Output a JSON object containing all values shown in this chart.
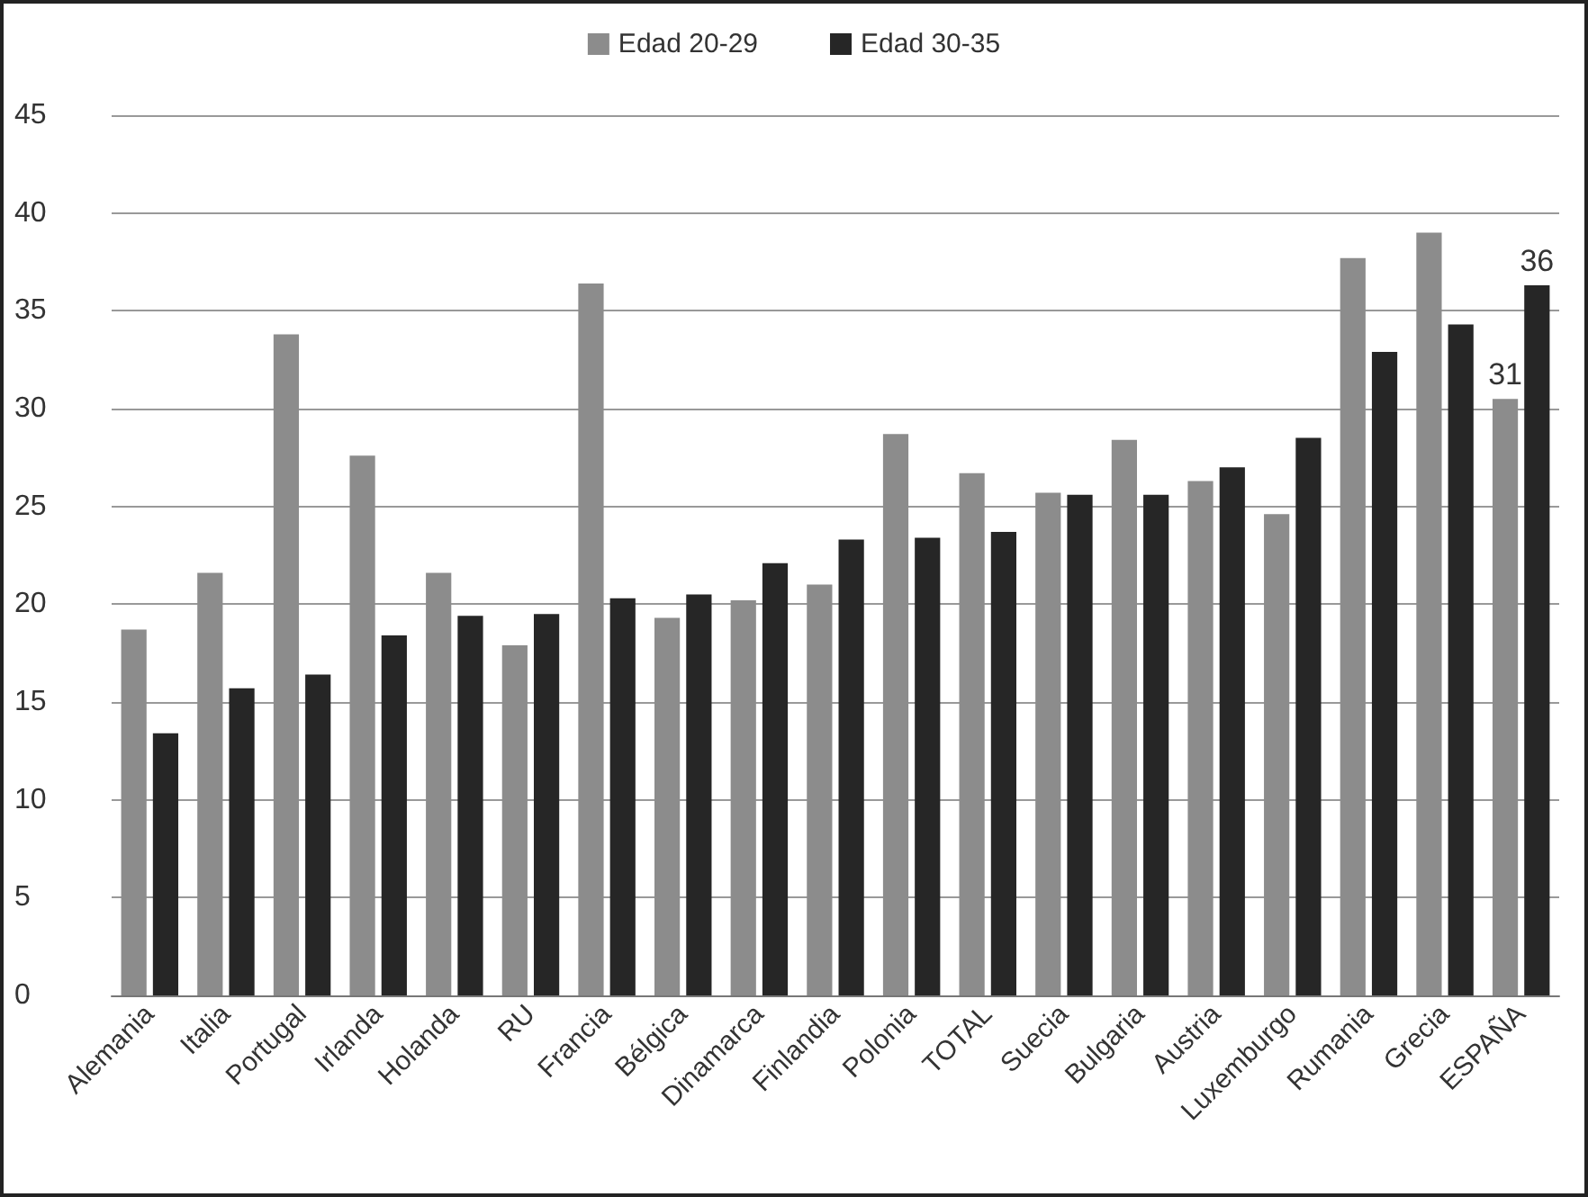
{
  "chart_data": {
    "type": "bar",
    "categories": [
      "Alemania",
      "Italia",
      "Portugal",
      "Irlanda",
      "Holanda",
      "RU",
      "Francia",
      "Bélgica",
      "Dinamarca",
      "Finlandia",
      "Polonia",
      "TOTAL",
      "Suecia",
      "Bulgaria",
      "Austria",
      "Luxemburgo",
      "Rumania",
      "Grecia",
      "ESPAÑA"
    ],
    "series": [
      {
        "name": "Edad 20-29",
        "color": "#8c8c8c",
        "values": [
          18.7,
          21.6,
          33.8,
          27.6,
          21.6,
          17.9,
          36.4,
          19.3,
          20.2,
          21.0,
          28.7,
          26.7,
          25.7,
          28.4,
          26.3,
          24.6,
          37.7,
          39.0,
          30.5
        ],
        "value_labels": [
          null,
          null,
          null,
          null,
          null,
          null,
          null,
          null,
          null,
          null,
          null,
          null,
          null,
          null,
          null,
          null,
          null,
          null,
          "31"
        ]
      },
      {
        "name": "Edad 30-35",
        "color": "#262626",
        "values": [
          13.4,
          15.7,
          16.4,
          18.4,
          19.4,
          19.5,
          20.3,
          20.5,
          22.1,
          23.3,
          23.4,
          23.7,
          25.6,
          25.6,
          27.0,
          28.5,
          32.9,
          34.3,
          36.3
        ],
        "value_labels": [
          null,
          null,
          null,
          null,
          null,
          null,
          null,
          null,
          null,
          null,
          null,
          null,
          null,
          null,
          null,
          null,
          null,
          null,
          "36"
        ]
      }
    ],
    "ylim": [
      0,
      45
    ],
    "yticks": [
      0,
      5,
      10,
      15,
      20,
      25,
      30,
      35,
      40,
      45
    ],
    "grid": "y",
    "legend": "top"
  }
}
